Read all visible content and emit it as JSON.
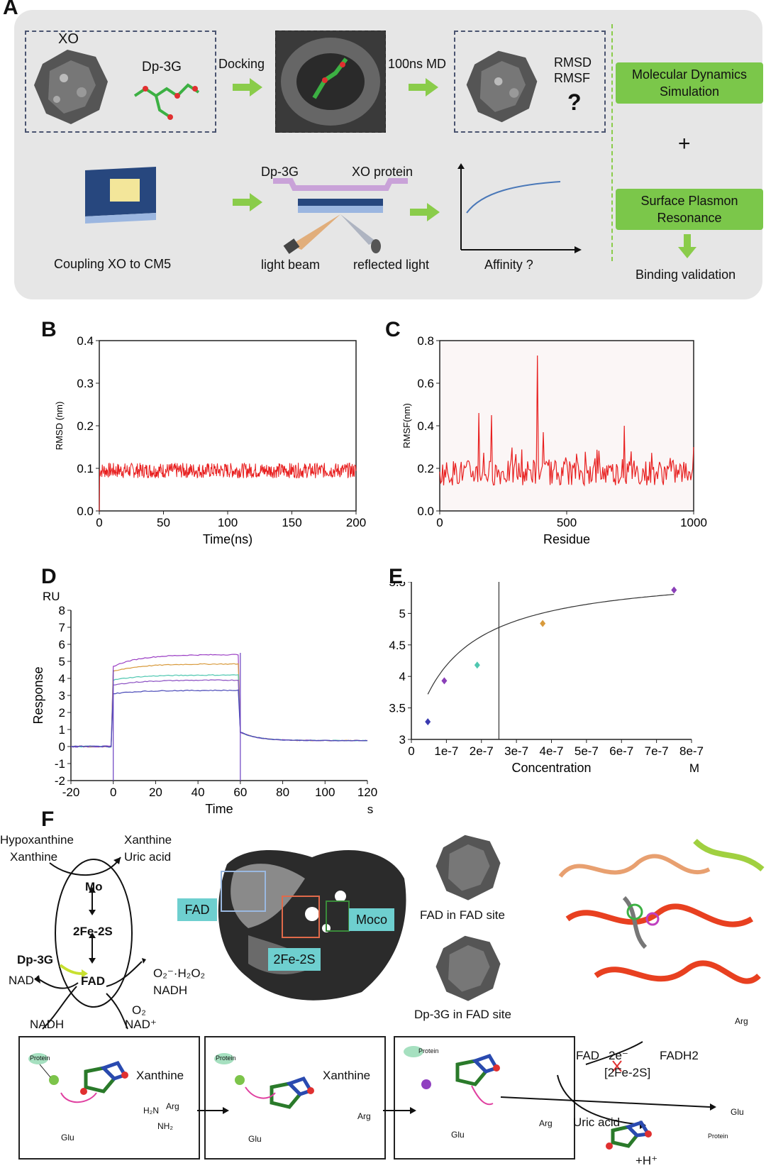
{
  "panelA": {
    "label": "A",
    "xo": "XO",
    "ligand": "Dp-3G",
    "docking": "Docking",
    "md": "100ns MD",
    "rmsd": "RMSD",
    "rmsf": "RMSF",
    "question": "?",
    "mds_box": "Molecular Dynamics Simulation",
    "plus": "+",
    "spr_box": "Surface Plasmon Resonance",
    "binding": "Binding validation",
    "coupling": "Coupling XO to CM5",
    "spr_ligand": "Dp-3G",
    "spr_protein": "XO protein",
    "light_beam": "light beam",
    "reflected": "reflected light",
    "affinity": "Affinity ?"
  },
  "panelB": {
    "label": "B"
  },
  "panelC": {
    "label": "C"
  },
  "panelD": {
    "label": "D"
  },
  "panelE": {
    "label": "E"
  },
  "panelF": {
    "label": "F",
    "hypoxanthine": "Hypoxanthine",
    "xanthine_in": "Xanthine",
    "xanthine_out": "Xanthine",
    "uric_out": "Uric acid",
    "mo": "Mo",
    "fe2s": "2Fe-2S",
    "fad": "FAD",
    "dp3g": "Dp-3G",
    "nad_plus": "NAD⁺",
    "nadh_left": "NADH",
    "o2_h2o2": "O₂⁻·H₂O₂",
    "nadh_right": "NADH",
    "o2": "O₂",
    "nad_plus2": "NAD⁺",
    "tag_fad": "FAD",
    "tag_2fe": "2Fe-2S",
    "tag_moco": "Moco",
    "fad_in_site": "FAD in FAD site",
    "dp_in_site": "Dp-3G in FAD site",
    "mech_xanthine1": "Xanthine",
    "mech_xanthine2": "Xanthine",
    "fad_label": "FAD",
    "two_e": "2e⁻",
    "fe2s_bracket": "[2Fe-2S]",
    "fadh2": "FADH2",
    "uric_acid": "Uric acid",
    "h_plus": "+H⁺",
    "arg": "Arg",
    "glu": "Glu",
    "protein": "Protein",
    "h2n": "H₂N",
    "nh2": "NH₂"
  },
  "chart_data": [
    {
      "type": "line",
      "id": "B",
      "title": "",
      "xlabel": "Time(ns)",
      "ylabel": "RMSD (nm)",
      "xlim": [
        0,
        200
      ],
      "ylim": [
        0.0,
        0.4
      ],
      "xticks": [
        "0",
        "50",
        "100",
        "150",
        "200"
      ],
      "yticks": [
        "0.0",
        "0.1",
        "0.2",
        "0.3",
        "0.4"
      ],
      "series": [
        {
          "name": "RMSD",
          "color": "#e82020",
          "mean": 0.095,
          "noise": 0.018
        }
      ]
    },
    {
      "type": "line",
      "id": "C",
      "title": "",
      "xlabel": "Residue",
      "ylabel": "RMSF(nm)",
      "xlim": [
        0,
        1300
      ],
      "ylim": [
        0.0,
        0.8
      ],
      "xticks": [
        "0",
        "500",
        "1000"
      ],
      "yticks": [
        "0.0",
        "0.2",
        "0.4",
        "0.6",
        "0.8"
      ],
      "series": [
        {
          "name": "RMSF",
          "color": "#e82020",
          "peaks": [
            [
              200,
              0.46
            ],
            [
              265,
              0.45
            ],
            [
              500,
              0.73
            ],
            [
              530,
              0.37
            ],
            [
              945,
              0.4
            ],
            [
              1300,
              0.3
            ]
          ]
        }
      ]
    },
    {
      "type": "line",
      "id": "D",
      "title": "",
      "xlabel": "Time",
      "xunit": "s",
      "ylabel": "Response",
      "yunit": "RU",
      "xlim": [
        -20,
        120
      ],
      "ylim": [
        -2,
        8
      ],
      "xticks": [
        "-20",
        "0",
        "20",
        "40",
        "60",
        "80",
        "100",
        "120"
      ],
      "yticks": [
        "-2",
        "-1",
        "0",
        "1",
        "2",
        "3",
        "4",
        "5",
        "6",
        "7",
        "8"
      ],
      "series": [
        {
          "name": "s1",
          "color": "#9b3fc4",
          "plateau": 5.4,
          "start": 4.7
        },
        {
          "name": "s2",
          "color": "#d89a3c",
          "plateau": 4.85,
          "start": 4.4
        },
        {
          "name": "s3",
          "color": "#4fc7b0",
          "plateau": 4.2,
          "start": 3.9
        },
        {
          "name": "s4",
          "color": "#8a4fc2",
          "plateau": 3.9,
          "start": 3.6
        },
        {
          "name": "s5",
          "color": "#4a4ab8",
          "plateau": 3.3,
          "start": 3.1
        }
      ]
    },
    {
      "type": "scatter",
      "id": "E",
      "title": "",
      "xlabel": "Concentration",
      "xunit": "M",
      "ylabel": "Response",
      "yunit": "RU",
      "xlim": [
        0,
        8e-07
      ],
      "ylim": [
        3,
        5.5
      ],
      "xticks": [
        "0",
        "1e-7",
        "2e-7",
        "3e-7",
        "4e-7",
        "5e-7",
        "6e-7",
        "7e-7",
        "8e-7"
      ],
      "yticks": [
        "3",
        "3.5",
        "4",
        "4.5",
        "5",
        "5.5"
      ],
      "vline": 2.5e-07,
      "points": [
        {
          "x": 4.7e-08,
          "y": 3.28,
          "color": "#3a3ab0"
        },
        {
          "x": 9.4e-08,
          "y": 3.93,
          "color": "#8a3fb8"
        },
        {
          "x": 1.88e-07,
          "y": 4.18,
          "color": "#4fc7b0"
        },
        {
          "x": 3.75e-07,
          "y": 4.84,
          "color": "#d89a3c"
        },
        {
          "x": 7.5e-07,
          "y": 5.37,
          "color": "#8a3fb8"
        }
      ]
    }
  ]
}
